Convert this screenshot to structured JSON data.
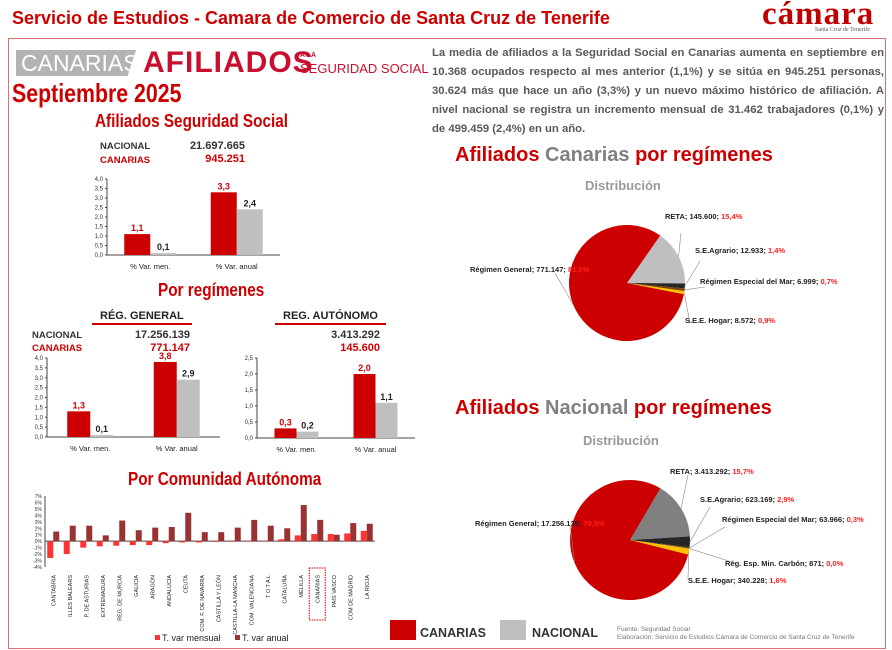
{
  "header": {
    "title": "Servicio de Estudios - Camara de Comercio de Santa Cruz de Tenerife",
    "logo_text": "cámara",
    "logo_sub": "Santa Cruz de Tenerife"
  },
  "banner": {
    "canarias": "CANARIAS",
    "afiliados": "AFILIADOS",
    "a_la": "A LA",
    "seguridad_social": "SEGURIDAD SOCIAL",
    "month": "Septiembre 2025"
  },
  "summary": {
    "title": "Afiliados Seguridad Social",
    "nacional_label": "NACIONAL",
    "nacional_value": "21.697.665",
    "canarias_label": "CANARIAS",
    "canarias_value": "945.251"
  },
  "regimes": {
    "title": "Por regímenes",
    "general": {
      "title": "RÉG. GENERAL",
      "nacional_label": "NACIONAL",
      "nacional_value": "17.256.139",
      "canarias_label": "CANARIAS",
      "canarias_value": "771.147"
    },
    "autonomo": {
      "title": "REG. AUTÓNOMO",
      "nacional_value": "3.413.292",
      "canarias_value": "145.600"
    }
  },
  "community_title": "Por Comunidad Autónoma",
  "paragraph": "La media de afiliados a la Seguridad Social en Canarias aumenta en septiembre en 10.368 ocupados respecto al mes anterior (1,1%) y se sitúa en 945.251 personas, 30.624 más que hace un año (3,3%) y un nuevo máximo histórico de afiliación. A nivel nacional se registra un incremento mensual de 31.462 trabajadores (0,1%) y de 499.459 (2,4%) en un año.",
  "pie_titles": {
    "canarias": {
      "a": "Afiliados ",
      "b": "Canarias",
      "c": " por regímenes"
    },
    "nacional": {
      "a": "Afiliados ",
      "b": "Nacional",
      "c": " por regímenes"
    },
    "distribution": "Distribución"
  },
  "legend": {
    "canarias": "CANARIAS",
    "nacional": "NACIONAL"
  },
  "source": {
    "line1": "Fuente: Seguridad Social",
    "line2": "Elaboración: Servicio de Estudios Cámara de Comercio de Santa Cruz de Tenerife"
  },
  "colors": {
    "canarias": "#cc0000",
    "nacional": "#bfbfbf",
    "mensual": "#ff3333",
    "anual": "#993333",
    "hogar": "#ffc000"
  },
  "chart_data": [
    {
      "type": "bar",
      "id": "total",
      "categories": [
        "% Var. men.",
        "% Var. anual"
      ],
      "ylim": [
        0,
        4
      ],
      "yticks": [
        "0,0",
        "0,5",
        "1,0",
        "1,5",
        "2,0",
        "2,5",
        "3,0",
        "3,5",
        "4,0"
      ],
      "series": [
        {
          "name": "CANARIAS",
          "values": [
            1.1,
            3.3
          ],
          "labels": [
            "1,1",
            "3,3"
          ]
        },
        {
          "name": "NACIONAL",
          "values": [
            0.1,
            2.4
          ],
          "labels": [
            "0,1",
            "2,4"
          ]
        }
      ]
    },
    {
      "type": "bar",
      "id": "general",
      "categories": [
        "% Var. men.",
        "% Var. anual"
      ],
      "ylim": [
        0,
        4
      ],
      "yticks": [
        "0,0",
        "0,5",
        "1,0",
        "1,5",
        "2,0",
        "2,5",
        "3,0",
        "3,5",
        "4,0"
      ],
      "series": [
        {
          "name": "CANARIAS",
          "values": [
            1.3,
            3.8
          ],
          "labels": [
            "1,3",
            "3,8"
          ]
        },
        {
          "name": "NACIONAL",
          "values": [
            0.1,
            2.9
          ],
          "labels": [
            "0,1",
            "2,9"
          ]
        }
      ]
    },
    {
      "type": "bar",
      "id": "autonomo",
      "categories": [
        "% Var. men.",
        "% Var. anual"
      ],
      "ylim": [
        0,
        2.5
      ],
      "yticks": [
        "0,0",
        "0,5",
        "1,0",
        "1,5",
        "2,0",
        "2,5"
      ],
      "series": [
        {
          "name": "CANARIAS",
          "values": [
            0.3,
            2.0
          ],
          "labels": [
            "0,3",
            "2,0"
          ]
        },
        {
          "name": "NACIONAL",
          "values": [
            0.2,
            1.1
          ],
          "labels": [
            "0,2",
            "1,1"
          ]
        }
      ]
    },
    {
      "type": "bar",
      "id": "comunidades",
      "ylim": [
        -4,
        7
      ],
      "yticks": [
        "-4%",
        "-3%",
        "-2%",
        "-1%",
        "0%",
        "1%",
        "2%",
        "3%",
        "4%",
        "5%",
        "6%",
        "7%"
      ],
      "highlight": "CANARIAS",
      "categories": [
        "CANTABRIA",
        "ILLES BALEARS",
        "P. DE ASTURIAS",
        "EXTREMADURA",
        "REG. DE MURCIA",
        "GALICIA",
        "ARAGÓN",
        "ANDALUCÍA",
        "CEUTA",
        "COM. F. DE NAVARRA",
        "CASTILLA Y LEÓN",
        "CASTILLA-LA MANCHA",
        "COM. VALENCIANA",
        "T O T A L",
        "CATALUÑA",
        "MELILLA",
        "CANARIAS",
        "PAÍS VASCO",
        "COM DE MADRID",
        "LA RIOJA"
      ],
      "series": [
        {
          "name": "T. var mensual",
          "values": [
            -2.6,
            -2.0,
            -1.0,
            -0.8,
            -0.7,
            -0.6,
            -0.6,
            -0.3,
            -0.2,
            -0.2,
            -0.1,
            0.0,
            0.1,
            0.1,
            0.3,
            0.9,
            1.1,
            1.1,
            1.2,
            1.6
          ]
        },
        {
          "name": "T. var anual",
          "values": [
            1.5,
            2.4,
            2.4,
            0.9,
            3.2,
            1.7,
            2.1,
            2.2,
            4.4,
            1.4,
            1.4,
            2.1,
            3.3,
            2.4,
            2.0,
            5.6,
            3.3,
            1.0,
            2.8,
            2.7
          ]
        }
      ]
    },
    {
      "type": "pie",
      "id": "pie-canarias",
      "slices": [
        {
          "name": "RETA",
          "value": "145.600",
          "pct": 15.4,
          "pct_label": "15,4%",
          "color": "#bfbfbf"
        },
        {
          "name": "S.E.Agrario",
          "value": "12.933",
          "pct": 1.4,
          "pct_label": "1,4%",
          "color": "#262626"
        },
        {
          "name": "Régimen Especial del Mar",
          "value": "6.999",
          "pct": 0.7,
          "pct_label": "0,7%",
          "color": "#7f3f00"
        },
        {
          "name": "S.E.E. Hogar",
          "value": "8.572",
          "pct": 0.9,
          "pct_label": "0,9%",
          "color": "#ffc000"
        },
        {
          "name": "Régimen General",
          "value": "771.147",
          "pct": 81.6,
          "pct_label": "81,6%",
          "color": "#cc0000"
        }
      ]
    },
    {
      "type": "pie",
      "id": "pie-nacional",
      "slices": [
        {
          "name": "RETA",
          "value": "3.413.292",
          "pct": 15.7,
          "pct_label": "15,7%",
          "color": "#808080"
        },
        {
          "name": "S.E.Agrario",
          "value": "623.169",
          "pct": 2.9,
          "pct_label": "2,9%",
          "color": "#262626"
        },
        {
          "name": "Régimen Especial del Mar",
          "value": "63.966",
          "pct": 0.3,
          "pct_label": "0,3%",
          "color": "#7f3f00"
        },
        {
          "name": "Rég. Esp. Min. Carbón",
          "value": "871",
          "pct": 0.0,
          "pct_label": "0,0%",
          "color": "#444"
        },
        {
          "name": "S.E.E. Hogar",
          "value": "340.228",
          "pct": 1.6,
          "pct_label": "1,6%",
          "color": "#ffc000"
        },
        {
          "name": "Régimen General",
          "value": "17.256.139",
          "pct": 79.5,
          "pct_label": "79,5%",
          "color": "#cc0000"
        }
      ]
    }
  ]
}
